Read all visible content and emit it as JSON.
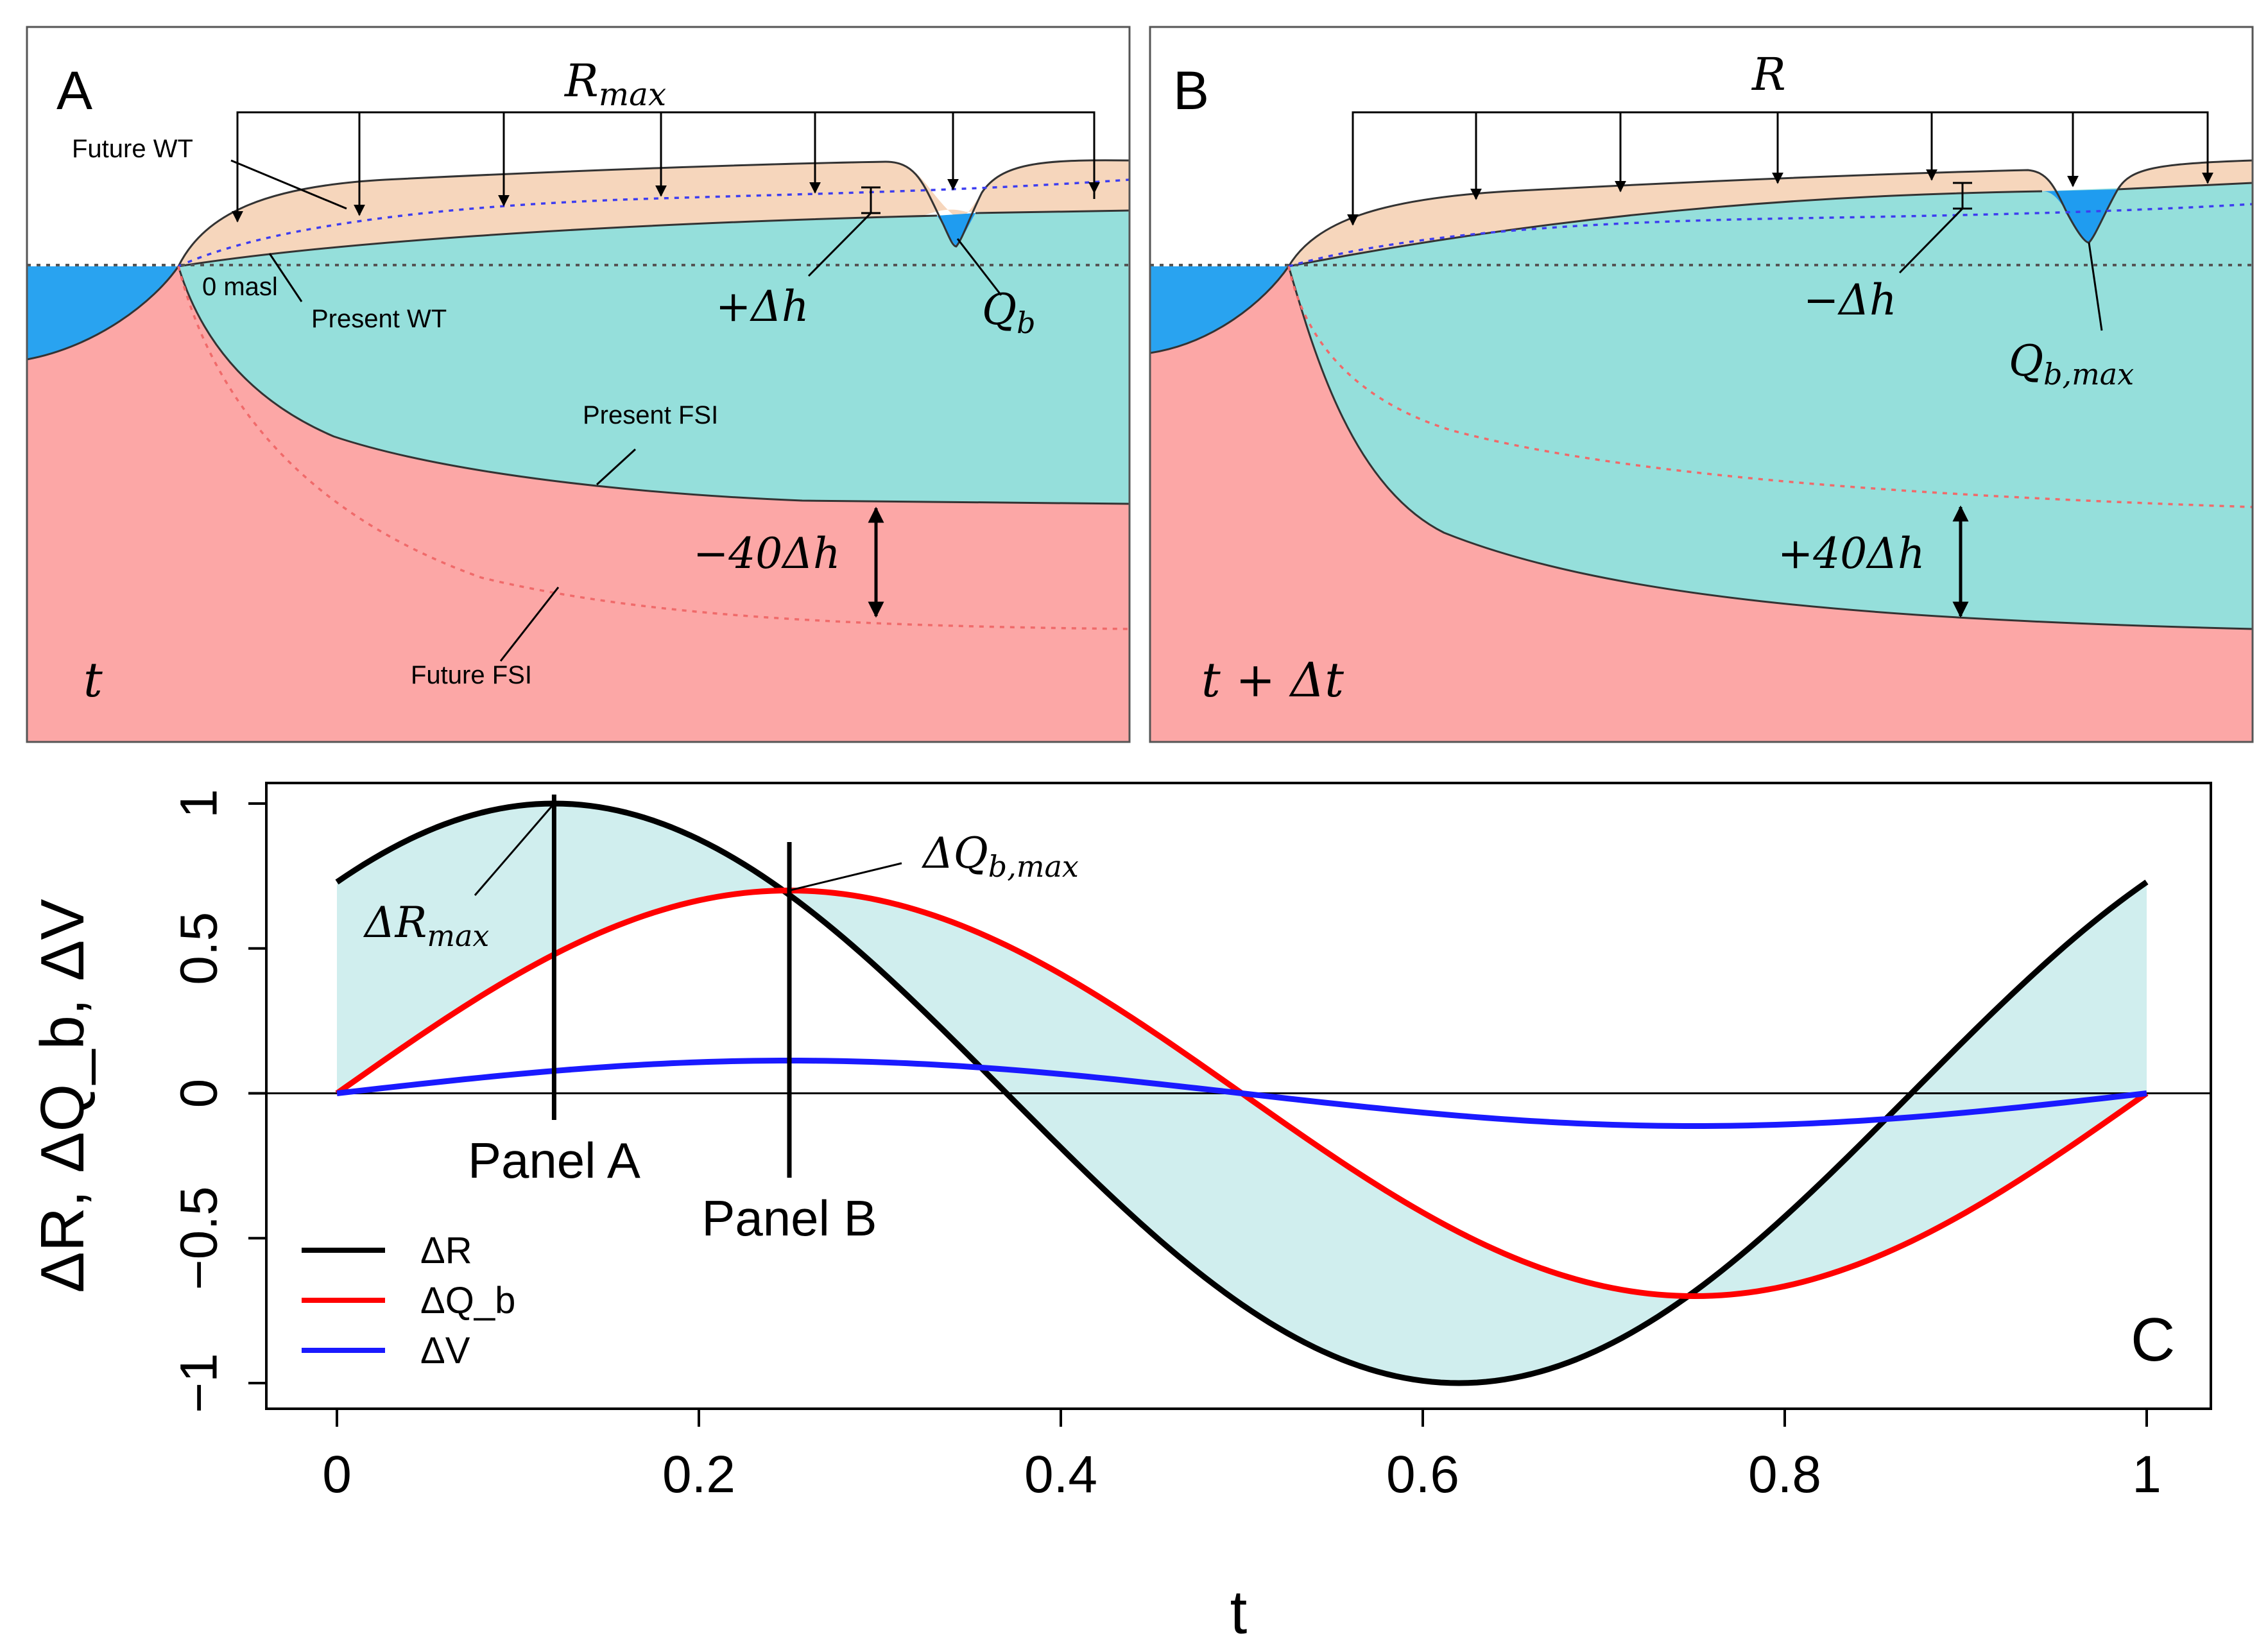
{
  "panel_a": {
    "letter": "A",
    "recharge_label": "R",
    "recharge_sub": "max",
    "time_label": "t",
    "labels": {
      "future_wt": "Future WT",
      "present_wt": "Present WT",
      "zero": "0 masl",
      "present_fsi": "Present FSI",
      "future_fsi": "Future FSI"
    },
    "dh_label": "+Δh",
    "qb_label": "Q",
    "qb_sub": "b",
    "fsi_change_label": "−40Δh"
  },
  "panel_b": {
    "letter": "B",
    "recharge_label": "R",
    "time_label": "t + Δt",
    "dh_label": "−Δh",
    "qb_label": "Q",
    "qb_sub": "b,max",
    "fsi_change_label": "+40Δh"
  },
  "colors": {
    "sea": "#29a3f0",
    "seawater_wedge": "#fca7a6",
    "freshwater": "#95dfdb",
    "unsaturated": "#f6d6bc",
    "stream_water": "#1f9cf0",
    "future_wt_line": "#3d3df0",
    "future_fsi_line": "#f06a6a",
    "band_fill": "#d0eeee",
    "series_r": "#000000",
    "series_qb": "#ff0000",
    "series_v": "#1a1aff"
  },
  "chart_data": {
    "type": "line",
    "panel_letter": "C",
    "ylabel": "ΔR, ΔQ_b, ΔV",
    "xlabel": "t",
    "xlim": [
      0,
      1
    ],
    "ylim": [
      -1,
      1
    ],
    "x_ticks": [
      0,
      0.2,
      0.4,
      0.6,
      0.8,
      1
    ],
    "x_tick_labels": [
      "0",
      "0.2",
      "0.4",
      "0.6",
      "0.8",
      "1"
    ],
    "y_ticks": [
      -1,
      -0.5,
      0,
      0.5,
      1
    ],
    "y_tick_labels": [
      "−1",
      "−0.5",
      "0",
      "0.5",
      "1"
    ],
    "x": [
      0,
      0.05,
      0.1,
      0.12,
      0.15,
      0.2,
      0.25,
      0.3,
      0.35,
      0.4,
      0.45,
      0.5,
      0.55,
      0.6,
      0.62,
      0.65,
      0.7,
      0.75,
      0.8,
      0.85,
      0.9,
      0.95,
      1
    ],
    "series": [
      {
        "name": "ΔR",
        "values": [
          0.729,
          0.876,
          0.969,
          0.985,
          0.992,
          0.95,
          0.729,
          0.425,
          0.063,
          -0.309,
          -0.637,
          -0.876,
          -0.992,
          -0.969,
          -0.985,
          -0.992,
          -0.95,
          -0.729,
          -0.425,
          -0.063,
          0.309,
          0.637,
          0.729
        ]
      },
      {
        "name": "ΔQ_b",
        "values": [
          0,
          0.216,
          0.411,
          0.476,
          0.566,
          0.666,
          0.7,
          0.666,
          0.566,
          0.411,
          0.216,
          0,
          -0.216,
          -0.411,
          -0.476,
          -0.566,
          -0.666,
          -0.7,
          -0.666,
          -0.566,
          -0.411,
          -0.216,
          0
        ]
      },
      {
        "name": "ΔV",
        "values": [
          0,
          0.035,
          0.067,
          0.079,
          0.092,
          0.108,
          0.113,
          0.108,
          0.092,
          0.067,
          0.035,
          0,
          -0.035,
          -0.067,
          -0.079,
          -0.092,
          -0.108,
          -0.113,
          -0.108,
          -0.092,
          -0.067,
          -0.035,
          0
        ]
      }
    ],
    "markers": [
      {
        "x": 0.12,
        "label": "Panel A"
      },
      {
        "x": 0.25,
        "label": "Panel B"
      }
    ],
    "annotations": [
      {
        "label": "ΔR",
        "sub": "max",
        "x": 0.12,
        "y": 1.0
      },
      {
        "label": "ΔQ",
        "sub": "b,max",
        "x": 0.25,
        "y": 0.7
      }
    ],
    "legend_placement": "bottom-left",
    "grid": false
  }
}
